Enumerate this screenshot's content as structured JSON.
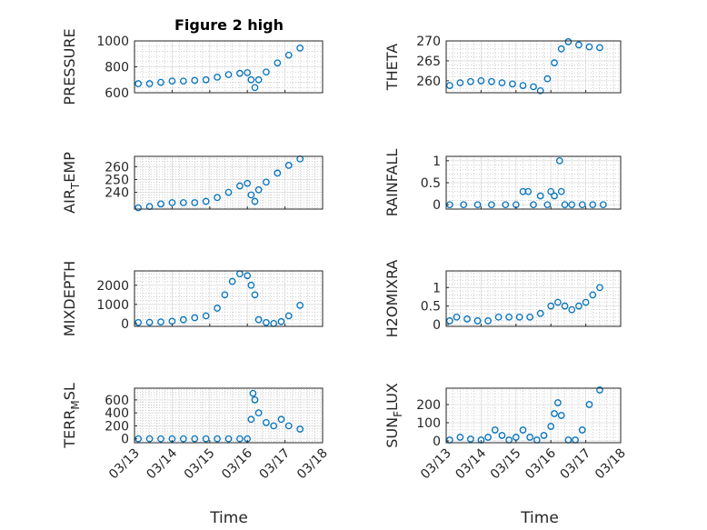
{
  "title": "Figure 2 high",
  "colors": {
    "marker": "#0072BD",
    "axis": "#262626",
    "grid": "#b0b0b0"
  },
  "x_tick_labels": [
    "03/13",
    "03/14",
    "03/15",
    "03/16",
    "03/17",
    "03/18"
  ],
  "xlabel": "Time",
  "chart_data": [
    {
      "type": "scatter",
      "name": "PRESSURE",
      "ylabel": "PRESSURE",
      "xlim": [
        0,
        5
      ],
      "ylim": [
        600,
        1000
      ],
      "yticks": [
        600,
        800,
        1000
      ],
      "x": [
        0.1,
        0.4,
        0.7,
        1.0,
        1.3,
        1.6,
        1.9,
        2.2,
        2.5,
        2.8,
        3.0,
        3.1,
        3.2,
        3.3,
        3.5,
        3.8,
        4.1,
        4.4
      ],
      "y": [
        670,
        670,
        680,
        690,
        690,
        695,
        700,
        720,
        740,
        750,
        755,
        700,
        640,
        700,
        760,
        830,
        890,
        945
      ]
    },
    {
      "type": "scatter",
      "name": "THETA",
      "ylabel": "THETA",
      "xlim": [
        0,
        5
      ],
      "ylim": [
        257,
        270
      ],
      "yticks": [
        260,
        265,
        270
      ],
      "x": [
        0.1,
        0.4,
        0.7,
        1.0,
        1.3,
        1.6,
        1.9,
        2.2,
        2.5,
        2.7,
        2.9,
        3.1,
        3.3,
        3.5,
        3.8,
        4.1,
        4.4
      ],
      "y": [
        258.8,
        259.5,
        259.8,
        260.0,
        259.8,
        259.5,
        259.2,
        258.8,
        258.5,
        257.5,
        260.5,
        264.5,
        268.0,
        269.8,
        269.0,
        268.5,
        268.3
      ]
    },
    {
      "type": "scatter",
      "name": "AIR_TEMP",
      "ylabel": "AIR_TEMP",
      "xlim": [
        0,
        5
      ],
      "ylim": [
        227,
        268
      ],
      "yticks": [
        240,
        250,
        260
      ],
      "x": [
        0.1,
        0.4,
        0.7,
        1.0,
        1.3,
        1.6,
        1.9,
        2.2,
        2.5,
        2.8,
        3.0,
        3.1,
        3.2,
        3.3,
        3.5,
        3.8,
        4.1,
        4.4
      ],
      "y": [
        228,
        229,
        231,
        232,
        232,
        232,
        233,
        236,
        240,
        245,
        247,
        238,
        233,
        242,
        248,
        255,
        261,
        266
      ]
    },
    {
      "type": "scatter",
      "name": "RAINFALL",
      "ylabel": "RAINFALL",
      "xlim": [
        0,
        5
      ],
      "ylim": [
        -0.1,
        1.1
      ],
      "yticks": [
        0,
        0.5,
        1
      ],
      "x": [
        0.1,
        0.5,
        0.9,
        1.3,
        1.7,
        2.0,
        2.2,
        2.35,
        2.5,
        2.7,
        2.9,
        3.0,
        3.1,
        3.25,
        3.3,
        3.4,
        3.6,
        3.9,
        4.2,
        4.5
      ],
      "y": [
        0,
        0,
        0,
        0,
        0,
        0,
        0.3,
        0.3,
        0,
        0.2,
        0,
        0.3,
        0.2,
        1.0,
        0.3,
        0,
        0,
        0,
        0,
        0
      ]
    },
    {
      "type": "scatter",
      "name": "MIXDEPTH",
      "ylabel": "MIXDEPTH",
      "xlim": [
        0,
        5
      ],
      "ylim": [
        -150,
        2750
      ],
      "yticks": [
        0,
        1000,
        2000
      ],
      "x": [
        0.1,
        0.4,
        0.7,
        1.0,
        1.3,
        1.6,
        1.9,
        2.2,
        2.4,
        2.6,
        2.8,
        3.0,
        3.1,
        3.2,
        3.3,
        3.5,
        3.7,
        3.9,
        4.1,
        4.4
      ],
      "y": [
        50,
        60,
        80,
        120,
        200,
        300,
        400,
        800,
        1500,
        2200,
        2600,
        2500,
        2000,
        1500,
        200,
        50,
        0,
        100,
        400,
        950
      ]
    },
    {
      "type": "scatter",
      "name": "H2OMIXRA",
      "ylabel": "H2OMIXRA",
      "xlim": [
        0,
        5
      ],
      "ylim": [
        -0.05,
        1.45
      ],
      "yticks": [
        0,
        0.5,
        1
      ],
      "x": [
        0.1,
        0.3,
        0.6,
        0.9,
        1.2,
        1.5,
        1.8,
        2.1,
        2.4,
        2.7,
        3.0,
        3.2,
        3.4,
        3.6,
        3.8,
        4.0,
        4.2,
        4.4
      ],
      "y": [
        0.1,
        0.2,
        0.15,
        0.1,
        0.1,
        0.2,
        0.2,
        0.2,
        0.2,
        0.3,
        0.5,
        0.6,
        0.5,
        0.4,
        0.5,
        0.6,
        0.8,
        1.0
      ]
    },
    {
      "type": "scatter",
      "name": "TERR_MSL",
      "ylabel": "TERR_MSL",
      "xlim": [
        0,
        5
      ],
      "ylim": [
        -60,
        780
      ],
      "yticks": [
        0,
        200,
        400,
        600
      ],
      "x": [
        0.1,
        0.4,
        0.7,
        1.0,
        1.3,
        1.6,
        1.9,
        2.2,
        2.5,
        2.8,
        3.0,
        3.1,
        3.15,
        3.2,
        3.3,
        3.5,
        3.7,
        3.9,
        4.1,
        4.4
      ],
      "y": [
        0,
        0,
        0,
        0,
        0,
        0,
        0,
        0,
        0,
        0,
        0,
        300,
        700,
        600,
        400,
        250,
        200,
        300,
        200,
        150
      ]
    },
    {
      "type": "scatter",
      "name": "SUN_FLUX",
      "ylabel": "SUN_FLUX",
      "xlim": [
        0,
        5
      ],
      "ylim": [
        -10,
        290
      ],
      "yticks": [
        0,
        100,
        200
      ],
      "x": [
        0.1,
        0.4,
        0.7,
        1.0,
        1.2,
        1.4,
        1.6,
        1.8,
        2.0,
        2.2,
        2.4,
        2.6,
        2.8,
        3.0,
        3.1,
        3.2,
        3.3,
        3.5,
        3.7,
        3.9,
        4.1,
        4.4
      ],
      "y": [
        5,
        20,
        10,
        5,
        20,
        60,
        30,
        5,
        20,
        60,
        20,
        5,
        30,
        80,
        150,
        210,
        140,
        5,
        5,
        60,
        200,
        280
      ]
    }
  ]
}
